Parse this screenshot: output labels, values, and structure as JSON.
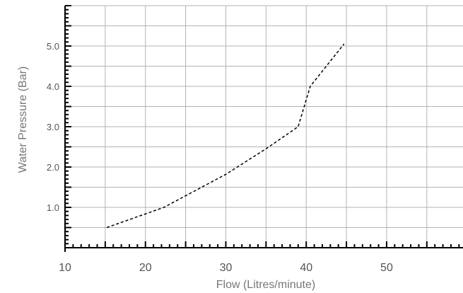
{
  "chart_data": {
    "type": "line",
    "title": "",
    "xlabel": "Flow (Litres/minute)",
    "ylabel": "Water Pressure (Bar)",
    "xlim": [
      10,
      59.5
    ],
    "ylim": [
      0,
      6
    ],
    "x_ticks": [
      10,
      20,
      30,
      40,
      50
    ],
    "x_tick_labels": [
      "10",
      "20",
      "30",
      "40",
      "50"
    ],
    "y_ticks": [
      1,
      2,
      3,
      4,
      5
    ],
    "y_tick_labels": [
      "1.0",
      "2.0",
      "3.0",
      "4.0",
      "5.0"
    ],
    "grid": true,
    "series": [
      {
        "line_style": "dashed",
        "color": "#000000",
        "points": [
          {
            "x": 15.2,
            "y": 0.5
          },
          {
            "x": 22.3,
            "y": 1.0
          },
          {
            "x": 30.0,
            "y": 1.82
          },
          {
            "x": 35.0,
            "y": 2.45
          },
          {
            "x": 39.0,
            "y": 3.0
          },
          {
            "x": 40.5,
            "y": 4.0
          },
          {
            "x": 44.7,
            "y": 5.05
          }
        ]
      }
    ]
  },
  "colors": {
    "grid": "#b3b3b3",
    "axis": "#000000",
    "text": "#555555"
  }
}
